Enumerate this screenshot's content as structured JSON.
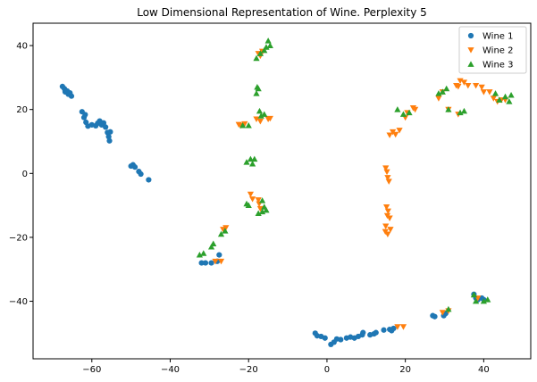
{
  "chart_data": {
    "type": "scatter",
    "title": "Low Dimensional Representation of Wine. Perplexity 5",
    "xlabel": "",
    "ylabel": "",
    "xlim": [
      -75,
      52
    ],
    "ylim": [
      -58,
      47
    ],
    "x_ticks": [
      -60,
      -40,
      -20,
      0,
      20,
      40
    ],
    "y_ticks": [
      -40,
      -20,
      0,
      20,
      40
    ],
    "grid": false,
    "legend_position": "top-right",
    "series": [
      {
        "name": "Wine 1",
        "marker": "circle",
        "color": "#1f77b4",
        "points": [
          [
            -67.5,
            27.2
          ],
          [
            -67.0,
            26.5
          ],
          [
            -66.8,
            25.5
          ],
          [
            -66.3,
            25.8
          ],
          [
            -66.0,
            24.8
          ],
          [
            -65.6,
            25.2
          ],
          [
            -65.2,
            24.2
          ],
          [
            -62.5,
            19.3
          ],
          [
            -62.0,
            17.5
          ],
          [
            -61.5,
            16.0
          ],
          [
            -61.7,
            18.4
          ],
          [
            -61.0,
            14.8
          ],
          [
            -60.0,
            15.2
          ],
          [
            -59.0,
            14.9
          ],
          [
            -58.5,
            15.7
          ],
          [
            -58.0,
            16.4
          ],
          [
            -57.5,
            15.2
          ],
          [
            -57.0,
            15.8
          ],
          [
            -56.5,
            14.5
          ],
          [
            -56.0,
            12.8
          ],
          [
            -55.7,
            11.5
          ],
          [
            -55.5,
            10.2
          ],
          [
            -55.3,
            13.0
          ],
          [
            -50.0,
            2.3
          ],
          [
            -49.5,
            2.7
          ],
          [
            -49.0,
            2.0
          ],
          [
            -48.0,
            0.6
          ],
          [
            -47.5,
            -0.2
          ],
          [
            -45.5,
            -2.0
          ],
          [
            -32.0,
            -28.0
          ],
          [
            -31.0,
            -28.0
          ],
          [
            -29.5,
            -28.0
          ],
          [
            -28.0,
            -27.5
          ],
          [
            -27.5,
            -25.5
          ],
          [
            -3.0,
            -50.0
          ],
          [
            -2.5,
            -50.8
          ],
          [
            -1.5,
            -51.0
          ],
          [
            -0.5,
            -51.5
          ],
          [
            1.0,
            -53.5
          ],
          [
            1.8,
            -52.8
          ],
          [
            2.5,
            -51.8
          ],
          [
            3.5,
            -52.0
          ],
          [
            5.0,
            -51.5
          ],
          [
            6.0,
            -51.2
          ],
          [
            7.0,
            -51.5
          ],
          [
            8.0,
            -51.0
          ],
          [
            9.0,
            -50.5
          ],
          [
            9.2,
            -49.8
          ],
          [
            11.0,
            -50.5
          ],
          [
            12.0,
            -50.2
          ],
          [
            12.5,
            -49.8
          ],
          [
            14.5,
            -49.0
          ],
          [
            16.0,
            -48.8
          ],
          [
            16.5,
            -49.2
          ],
          [
            17.0,
            -48.5
          ],
          [
            27.0,
            -44.5
          ],
          [
            27.5,
            -44.8
          ],
          [
            29.8,
            -44.5
          ],
          [
            30.3,
            -43.8
          ],
          [
            37.5,
            -37.8
          ],
          [
            38.0,
            -39.0
          ],
          [
            38.5,
            -39.5
          ],
          [
            39.5,
            -39.0
          ],
          [
            40.0,
            -39.5
          ]
        ]
      },
      {
        "name": "Wine 2",
        "marker": "triangle-down",
        "color": "#ff7f0e",
        "points": [
          [
            -28.5,
            -27.5
          ],
          [
            -27.0,
            -27.5
          ],
          [
            -26.5,
            -17.5
          ],
          [
            -25.8,
            -17.0
          ],
          [
            -22.5,
            15.3
          ],
          [
            -22.0,
            15.0
          ],
          [
            -21.0,
            15.5
          ],
          [
            -19.5,
            -6.5
          ],
          [
            -19.0,
            -8.0
          ],
          [
            -17.5,
            -8.3
          ],
          [
            -17.3,
            -9.5
          ],
          [
            -17.0,
            -11.0
          ],
          [
            -18.0,
            17.0
          ],
          [
            -17.0,
            16.3
          ],
          [
            -15.0,
            17.0
          ],
          [
            -14.5,
            17.2
          ],
          [
            -17.5,
            37.5
          ],
          [
            -17.0,
            36.8
          ],
          [
            -16.5,
            38.2
          ],
          [
            15.0,
            1.7
          ],
          [
            15.3,
            0.5
          ],
          [
            15.5,
            -1.3
          ],
          [
            15.8,
            -2.5
          ],
          [
            15.2,
            -10.5
          ],
          [
            15.6,
            -11.8
          ],
          [
            15.4,
            -13.2
          ],
          [
            16.0,
            -14.0
          ],
          [
            15.0,
            -16.5
          ],
          [
            16.2,
            -17.5
          ],
          [
            15.5,
            -19.0
          ],
          [
            14.9,
            -18.2
          ],
          [
            16.0,
            12.0
          ],
          [
            16.8,
            13.0
          ],
          [
            17.5,
            12.2
          ],
          [
            18.5,
            13.5
          ],
          [
            20.0,
            17.5
          ],
          [
            20.5,
            19.0
          ],
          [
            22.0,
            20.5
          ],
          [
            22.5,
            20.0
          ],
          [
            28.5,
            23.5
          ],
          [
            29.5,
            25.5
          ],
          [
            31.0,
            20.0
          ],
          [
            33.0,
            27.5
          ],
          [
            33.5,
            27.2
          ],
          [
            34.0,
            29.0
          ],
          [
            35.0,
            28.5
          ],
          [
            36.0,
            27.5
          ],
          [
            38.0,
            27.5
          ],
          [
            39.5,
            27.0
          ],
          [
            40.0,
            25.5
          ],
          [
            41.5,
            25.5
          ],
          [
            42.5,
            23.5
          ],
          [
            43.5,
            22.5
          ],
          [
            44.5,
            23.0
          ],
          [
            45.5,
            23.0
          ],
          [
            33.5,
            18.5
          ],
          [
            18.0,
            -48.0
          ],
          [
            19.5,
            -48.0
          ],
          [
            29.5,
            -43.5
          ],
          [
            31.0,
            -43.0
          ],
          [
            38.5,
            -39.0
          ]
        ]
      },
      {
        "name": "Wine 3",
        "marker": "triangle-up",
        "color": "#2ca02c",
        "points": [
          [
            -32.5,
            -25.5
          ],
          [
            -31.5,
            -25.0
          ],
          [
            -29.5,
            -23.0
          ],
          [
            -29.0,
            -22.0
          ],
          [
            -27.0,
            -19.0
          ],
          [
            -26.0,
            -18.0
          ],
          [
            -21.5,
            15.0
          ],
          [
            -20.0,
            15.0
          ],
          [
            -20.5,
            3.5
          ],
          [
            -19.5,
            4.5
          ],
          [
            -18.5,
            4.5
          ],
          [
            -19.0,
            3.0
          ],
          [
            -20.5,
            -9.5
          ],
          [
            -20.0,
            -10.0
          ],
          [
            -17.5,
            -12.5
          ],
          [
            -16.5,
            -8.5
          ],
          [
            -16.0,
            -10.5
          ],
          [
            -15.5,
            -11.5
          ],
          [
            -16.5,
            -12.0
          ],
          [
            -18.0,
            25.0
          ],
          [
            -17.5,
            26.5
          ],
          [
            -17.8,
            27.0
          ],
          [
            -17.2,
            19.5
          ],
          [
            -16.8,
            18.0
          ],
          [
            -16.0,
            18.5
          ],
          [
            -18.0,
            36.0
          ],
          [
            -17.0,
            37.5
          ],
          [
            -16.0,
            38.5
          ],
          [
            -15.5,
            39.5
          ],
          [
            -15.0,
            41.5
          ],
          [
            -14.5,
            40.0
          ],
          [
            18.0,
            20.0
          ],
          [
            19.5,
            18.5
          ],
          [
            21.0,
            19.0
          ],
          [
            28.5,
            25.0
          ],
          [
            29.5,
            25.5
          ],
          [
            30.5,
            26.5
          ],
          [
            31.0,
            20.0
          ],
          [
            34.0,
            19.0
          ],
          [
            35.0,
            19.5
          ],
          [
            43.0,
            25.0
          ],
          [
            44.0,
            23.0
          ],
          [
            45.5,
            24.0
          ],
          [
            46.5,
            22.5
          ],
          [
            47.0,
            24.5
          ],
          [
            37.5,
            -38.0
          ],
          [
            38.0,
            -40.0
          ],
          [
            40.0,
            -40.0
          ],
          [
            41.0,
            -39.5
          ],
          [
            31.0,
            -42.5
          ]
        ]
      }
    ]
  }
}
